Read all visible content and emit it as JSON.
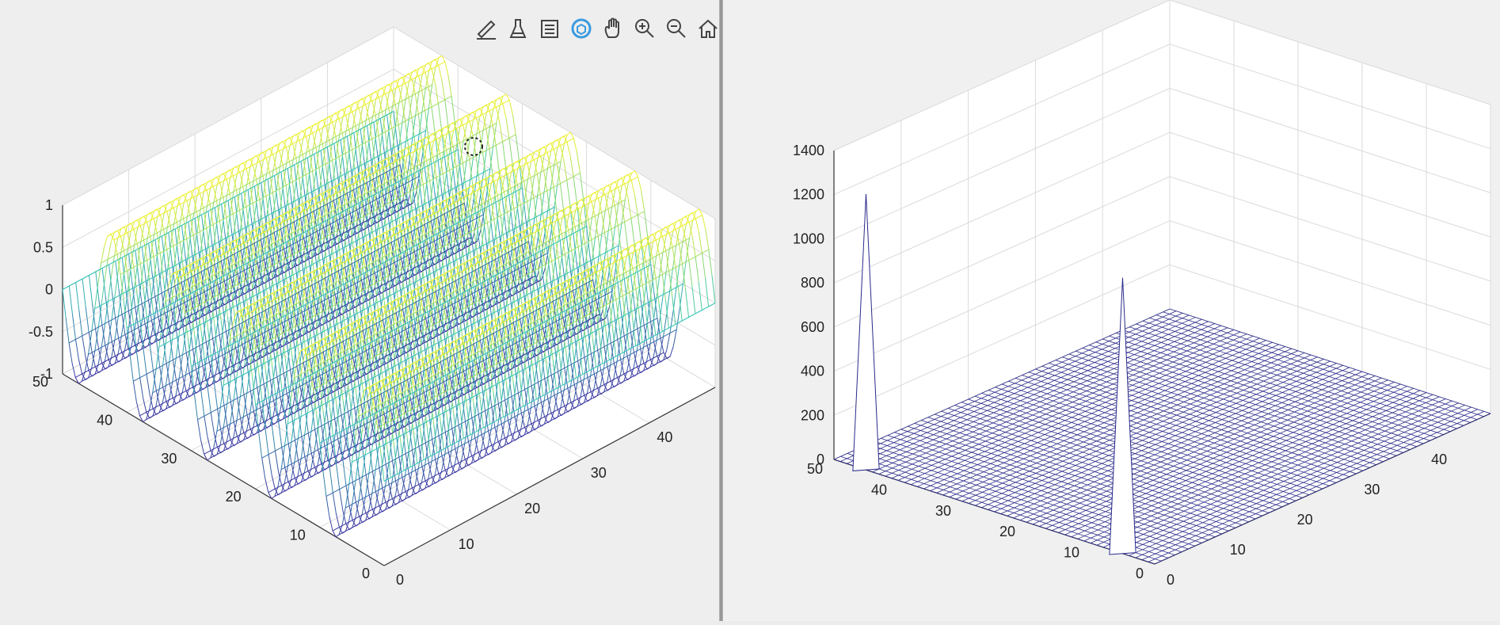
{
  "toolbar": {
    "buttons": [
      {
        "name": "edit-plot-icon",
        "active": false
      },
      {
        "name": "brush-data-icon",
        "active": false
      },
      {
        "name": "insert-legend-icon",
        "active": false
      },
      {
        "name": "rotate-3d-icon",
        "active": true
      },
      {
        "name": "pan-hand-icon",
        "active": false
      },
      {
        "name": "zoom-in-icon",
        "active": false
      },
      {
        "name": "zoom-out-icon",
        "active": false
      },
      {
        "name": "restore-view-home-icon",
        "active": false
      }
    ],
    "active_color": "#3a9be0"
  },
  "chart_data": [
    {
      "type": "surface-mesh",
      "description_source": "left axes: 3-D mesh of a sinusoid varying along one horizontal axis",
      "x_ticks": [
        "0",
        "10",
        "20",
        "30",
        "40"
      ],
      "y_ticks": [
        "0",
        "10",
        "20",
        "30",
        "40",
        "50"
      ],
      "z_ticks": [
        "-1",
        "-0.5",
        "0",
        "0.5",
        "1"
      ],
      "xlim": [
        0,
        50
      ],
      "ylim": [
        0,
        50
      ],
      "zlim": [
        -1,
        1
      ],
      "grid_size": 50,
      "function": "sin(2*pi*5*y/50)",
      "cycles": 5,
      "colormap": [
        "#3b30a0",
        "#2fc4b5",
        "#f5f225"
      ],
      "grid": true
    },
    {
      "type": "surface-mesh",
      "description_source": "right axes: magnitude spectrum with two sharp peaks",
      "x_ticks": [
        "0",
        "10",
        "20",
        "30",
        "40"
      ],
      "y_ticks": [
        "0",
        "10",
        "20",
        "30",
        "40",
        "50"
      ],
      "z_ticks": [
        "0",
        "200",
        "400",
        "600",
        "800",
        "1000",
        "1200",
        "1400"
      ],
      "xlim": [
        0,
        50
      ],
      "ylim": [
        0,
        50
      ],
      "zlim": [
        0,
        1400
      ],
      "grid_size": 50,
      "peaks": [
        {
          "x": 0,
          "y": 5,
          "z": 1250
        },
        {
          "x": 0,
          "y": 45,
          "z": 1250
        }
      ],
      "mesh_color": "#2a2a8a",
      "grid": true
    }
  ]
}
